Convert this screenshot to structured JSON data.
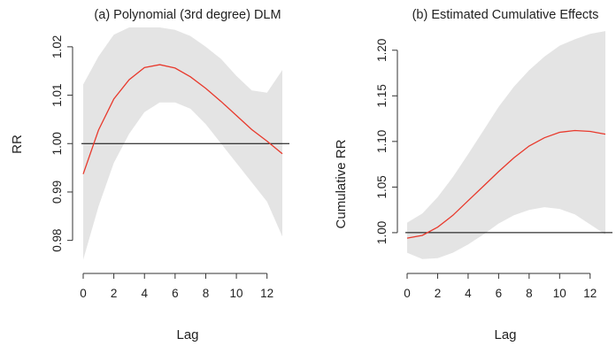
{
  "chart_data": [
    {
      "type": "line",
      "title": "(a) Polynomial (3rd degree) DLM",
      "xlabel": "Lag",
      "ylabel": "RR",
      "xlim": [
        0,
        13
      ],
      "ylim": [
        0.975,
        1.024
      ],
      "xticks": [
        0,
        2,
        4,
        6,
        8,
        10,
        12
      ],
      "xtick_labels": [
        "0",
        "2",
        "4",
        "6",
        "8",
        "10",
        "12"
      ],
      "yticks": [
        0.98,
        0.99,
        1.0,
        1.01,
        1.02
      ],
      "ytick_labels": [
        "0.98",
        "0.99",
        "1.00",
        "1.01",
        "1.02"
      ],
      "reference_line": 1.0,
      "colors": {
        "estimate": "#e8392c",
        "confidence_band": "#e4e4e4",
        "reference": "#000000"
      },
      "series": [
        {
          "x": [
            0,
            1,
            2,
            3,
            4,
            5,
            6,
            7,
            8,
            9,
            10,
            11,
            12,
            13
          ],
          "values": [
            0.9937,
            1.0028,
            1.0092,
            1.0132,
            1.0157,
            1.0163,
            1.0156,
            1.0138,
            1.0114,
            1.0087,
            1.0058,
            1.0029,
            1.0005,
            0.9979
          ],
          "lower": [
            0.976,
            0.987,
            0.996,
            1.002,
            1.0065,
            1.0085,
            1.0085,
            1.0072,
            1.004,
            1.0,
            0.996,
            0.992,
            0.988,
            0.9808
          ],
          "upper": [
            1.0122,
            1.018,
            1.0225,
            1.024,
            1.024,
            1.024,
            1.0235,
            1.0222,
            1.02,
            1.0175,
            1.014,
            1.011,
            1.0105,
            1.0152
          ]
        }
      ]
    },
    {
      "type": "line",
      "title": "(b) Estimated Cumulative Effects",
      "xlabel": "Lag",
      "ylabel": "Cumulative RR",
      "xlim": [
        0,
        13
      ],
      "ylim": [
        0.965,
        1.225
      ],
      "xticks": [
        0,
        2,
        4,
        6,
        8,
        10,
        12
      ],
      "xtick_labels": [
        "0",
        "2",
        "4",
        "6",
        "8",
        "10",
        "12"
      ],
      "yticks": [
        1.0,
        1.05,
        1.1,
        1.15,
        1.2
      ],
      "ytick_labels": [
        "1.00",
        "1.05",
        "1.10",
        "1.15",
        "1.20"
      ],
      "reference_line": 1.0,
      "colors": {
        "estimate": "#e8392c",
        "confidence_band": "#e4e4e4",
        "reference": "#000000"
      },
      "series": [
        {
          "x": [
            0,
            1,
            2,
            3,
            4,
            5,
            6,
            7,
            8,
            9,
            10,
            11,
            12,
            13
          ],
          "values": [
            0.994,
            0.997,
            1.006,
            1.019,
            1.035,
            1.051,
            1.067,
            1.082,
            1.095,
            1.104,
            1.11,
            1.112,
            1.111,
            1.108
          ],
          "lower": [
            0.978,
            0.971,
            0.972,
            0.978,
            0.987,
            0.998,
            1.01,
            1.019,
            1.025,
            1.028,
            1.026,
            1.02,
            1.009,
            0.998
          ],
          "upper": [
            1.011,
            1.021,
            1.039,
            1.061,
            1.086,
            1.112,
            1.138,
            1.16,
            1.178,
            1.193,
            1.205,
            1.212,
            1.218,
            1.221
          ]
        }
      ]
    }
  ]
}
